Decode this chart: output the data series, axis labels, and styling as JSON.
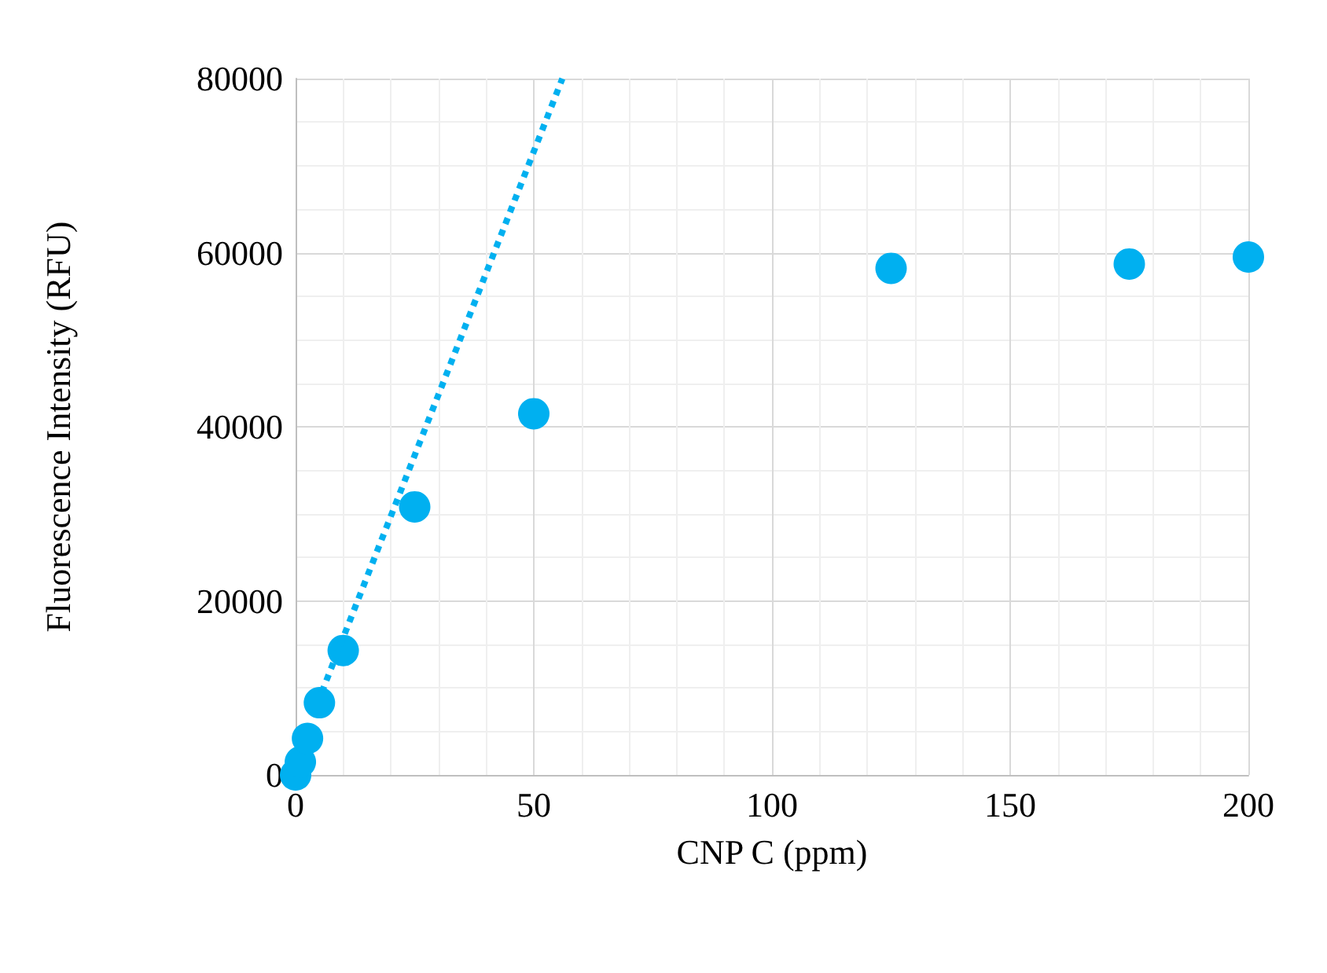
{
  "chart_data": {
    "type": "scatter",
    "xlabel": "CNP C (ppm)",
    "ylabel": "Fluorescence Intensity (RFU)",
    "series": [
      {
        "color": "#00b0f0",
        "marker": "circle",
        "x": [
          0,
          1,
          2.5,
          5,
          10,
          25,
          50,
          125,
          175,
          200
        ],
        "values": [
          0,
          1500,
          4200,
          8300,
          14300,
          30800,
          41500,
          58200,
          58700,
          59500
        ]
      },
      {
        "type": "line",
        "color": "#00b0f0",
        "line_style": "dotted",
        "marker": "none",
        "x": [
          5.5,
          56
        ],
        "values": [
          9500,
          80000
        ]
      }
    ],
    "xlim": [
      0,
      200
    ],
    "xticks": [
      0,
      50,
      100,
      150,
      200
    ],
    "ylim": [
      0,
      80000
    ],
    "yticks": [
      0,
      20000,
      40000,
      60000,
      80000
    ],
    "grid": true
  }
}
